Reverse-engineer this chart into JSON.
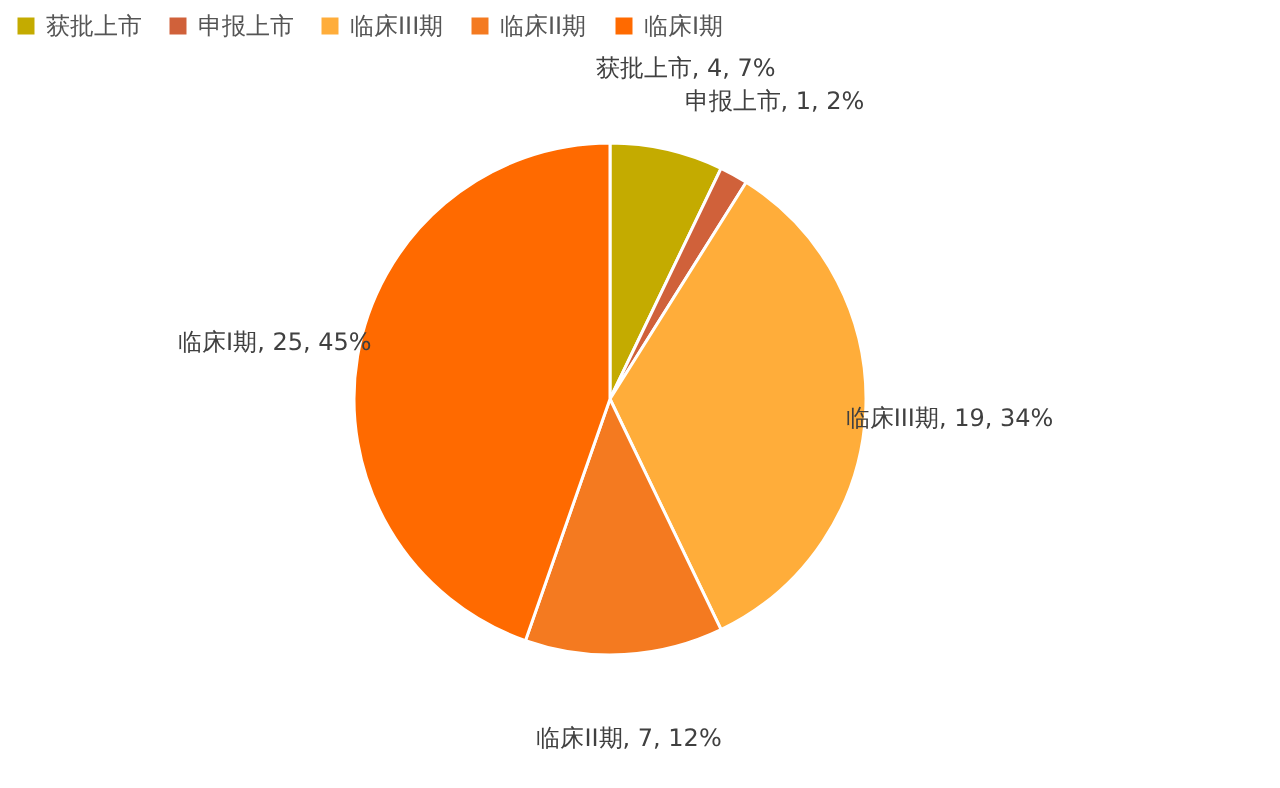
{
  "chart_data": {
    "type": "pie",
    "categories": [
      "获批上市",
      "申报上市",
      "临床III期",
      "临床II期",
      "临床I期"
    ],
    "values": [
      4,
      1,
      19,
      7,
      25
    ],
    "colors": [
      "#c4ab00",
      "#d0613a",
      "#ffad3a",
      "#f47a20",
      "#ff6a00"
    ],
    "value_labels": [
      ", 4, 7%",
      ", 1, 2%",
      ", 19, 34%",
      ", 7, 12%",
      ", 25, 45%"
    ],
    "legend": "top"
  }
}
